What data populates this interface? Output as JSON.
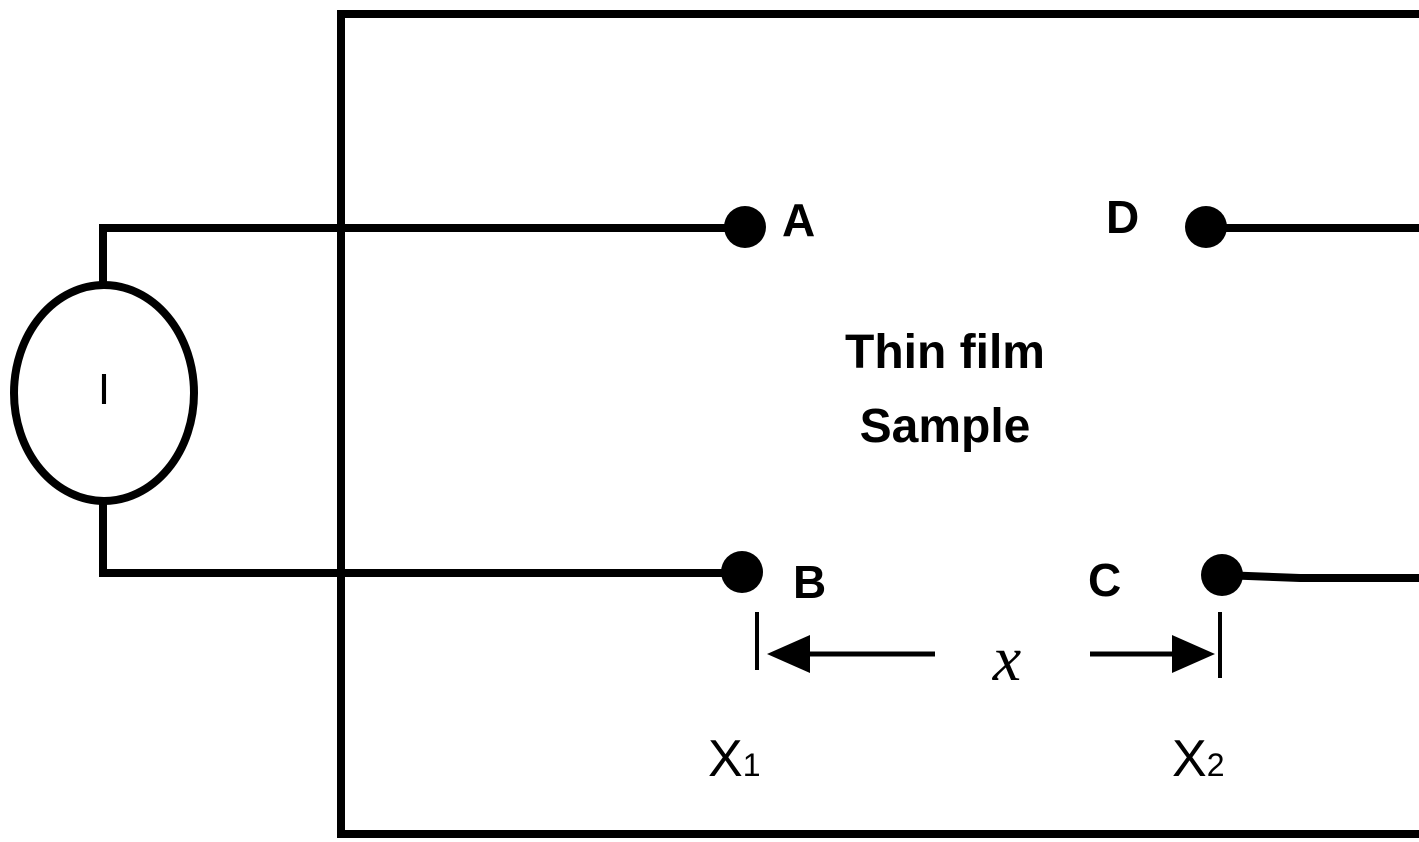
{
  "source": {
    "label": "I"
  },
  "sample": {
    "line1": "Thin film",
    "line2": "Sample"
  },
  "contacts": {
    "a": "A",
    "b": "B",
    "c": "C",
    "d": "D"
  },
  "dimension": {
    "variable": "x",
    "start_label_base": "X",
    "start_label_sub": "1",
    "end_label_base": "X",
    "end_label_sub": "2"
  }
}
